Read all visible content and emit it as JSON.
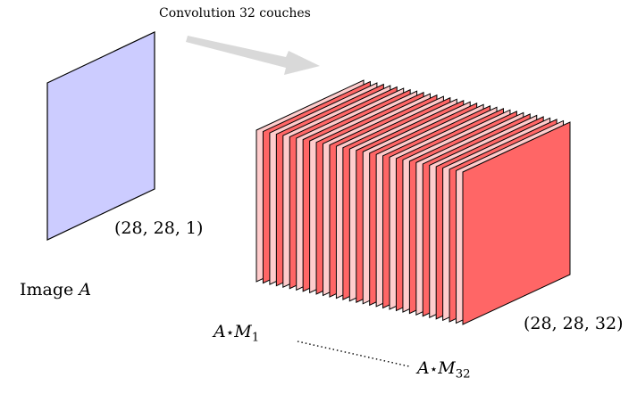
{
  "colors": {
    "input_fill": "#ccccff",
    "layer_front": "#ff6666",
    "layer_back": "#ffcccc",
    "arrow": "#d9d9d9",
    "stroke": "#000000"
  },
  "arrow_label": "Convolution 32 couches",
  "input": {
    "caption_prefix": "Image",
    "caption_var": "A",
    "shape": "(28, 28, 1)"
  },
  "output": {
    "layer_count": 32,
    "shape": "(28, 28, 32)",
    "first_layer": {
      "var": "A",
      "op": "⋆",
      "filter": "M",
      "index": "1"
    },
    "last_layer": {
      "var": "A",
      "op": "⋆",
      "filter": "M",
      "index": "32"
    }
  }
}
